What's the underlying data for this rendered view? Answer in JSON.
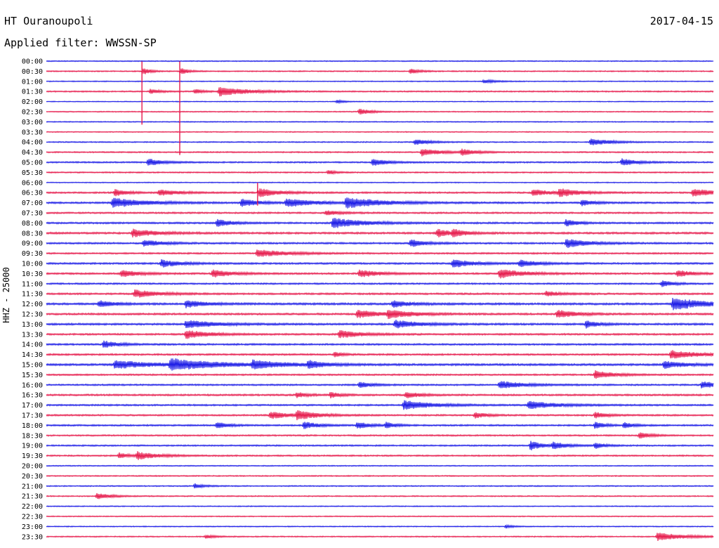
{
  "header": {
    "station": "HT Ouranoupoli",
    "date": "2017-04-15",
    "filter": "Applied filter: WWSSN-SP"
  },
  "colors": {
    "a": "#1a1ae6",
    "b": "#e6194b"
  },
  "chart_data": {
    "type": "line",
    "title": "HT Ouranoupoli",
    "ylabel": "HHZ - 25000",
    "x_unit": "minutes within each 30-minute trace",
    "xlim": [
      0,
      30
    ],
    "trace_colors": [
      "#1a1ae6",
      "#e6194b"
    ],
    "rows": [
      "00:00",
      "00:30",
      "01:00",
      "01:30",
      "02:00",
      "02:30",
      "03:00",
      "03:30",
      "04:00",
      "04:30",
      "05:00",
      "05:30",
      "06:00",
      "06:30",
      "07:00",
      "07:30",
      "08:00",
      "08:30",
      "09:00",
      "09:30",
      "10:00",
      "10:30",
      "11:00",
      "11:30",
      "12:00",
      "12:30",
      "13:00",
      "13:30",
      "14:00",
      "14:30",
      "15:00",
      "15:30",
      "16:00",
      "16:30",
      "17:00",
      "17:30",
      "18:00",
      "18:30",
      "19:00",
      "19:30",
      "20:00",
      "20:30",
      "21:00",
      "21:30",
      "22:00",
      "22:30",
      "23:00",
      "23:30"
    ],
    "noise": [
      0.35,
      0.4,
      0.35,
      0.45,
      0.3,
      0.35,
      0.35,
      0.35,
      0.4,
      0.45,
      0.5,
      0.45,
      0.35,
      0.55,
      0.6,
      0.55,
      0.6,
      0.65,
      0.6,
      0.55,
      0.6,
      0.6,
      0.55,
      0.6,
      0.7,
      0.65,
      0.65,
      0.6,
      0.6,
      0.6,
      0.7,
      0.55,
      0.55,
      0.6,
      0.55,
      0.55,
      0.55,
      0.5,
      0.5,
      0.5,
      0.35,
      0.4,
      0.4,
      0.4,
      0.35,
      0.35,
      0.35,
      0.4
    ],
    "events": [
      {
        "row": 1,
        "t": 4.3,
        "amp": 6,
        "dur": 0.3
      },
      {
        "row": 1,
        "t": 6.0,
        "amp": 6,
        "dur": 0.3
      },
      {
        "row": 1,
        "t": 16.3,
        "amp": 4,
        "dur": 0.4
      },
      {
        "row": 2,
        "t": 19.6,
        "amp": 3,
        "dur": 0.5
      },
      {
        "row": 3,
        "t": 4.6,
        "amp": 4,
        "dur": 0.4
      },
      {
        "row": 3,
        "t": 6.6,
        "amp": 4,
        "dur": 0.4
      },
      {
        "row": 3,
        "t": 7.7,
        "amp": 7,
        "dur": 1.2
      },
      {
        "row": 4,
        "t": 13.0,
        "amp": 3,
        "dur": 0.3
      },
      {
        "row": 5,
        "t": 14.0,
        "amp": 5,
        "dur": 0.5
      },
      {
        "row": 8,
        "t": 16.5,
        "amp": 5,
        "dur": 0.6
      },
      {
        "row": 8,
        "t": 24.4,
        "amp": 6,
        "dur": 0.8
      },
      {
        "row": 9,
        "t": 16.8,
        "amp": 6,
        "dur": 0.8
      },
      {
        "row": 9,
        "t": 18.6,
        "amp": 5,
        "dur": 0.6
      },
      {
        "row": 10,
        "t": 4.5,
        "amp": 6,
        "dur": 0.6
      },
      {
        "row": 10,
        "t": 14.6,
        "amp": 6,
        "dur": 0.6
      },
      {
        "row": 10,
        "t": 25.8,
        "amp": 6,
        "dur": 0.6
      },
      {
        "row": 11,
        "t": 12.6,
        "amp": 4,
        "dur": 0.3
      },
      {
        "row": 13,
        "t": 3.0,
        "amp": 6,
        "dur": 0.5
      },
      {
        "row": 13,
        "t": 5.0,
        "amp": 5,
        "dur": 0.8
      },
      {
        "row": 13,
        "t": 9.5,
        "amp": 7,
        "dur": 0.8
      },
      {
        "row": 13,
        "t": 21.8,
        "amp": 5,
        "dur": 0.8
      },
      {
        "row": 13,
        "t": 23.0,
        "amp": 6,
        "dur": 0.8
      },
      {
        "row": 13,
        "t": 29.0,
        "amp": 6,
        "dur": 1.0
      },
      {
        "row": 14,
        "t": 2.9,
        "amp": 7,
        "dur": 1.4
      },
      {
        "row": 14,
        "t": 8.7,
        "amp": 6,
        "dur": 0.7
      },
      {
        "row": 14,
        "t": 10.7,
        "amp": 6,
        "dur": 1.2
      },
      {
        "row": 14,
        "t": 13.4,
        "amp": 8,
        "dur": 1.5
      },
      {
        "row": 14,
        "t": 24.0,
        "amp": 5,
        "dur": 0.5
      },
      {
        "row": 15,
        "t": 12.5,
        "amp": 4,
        "dur": 0.6
      },
      {
        "row": 16,
        "t": 7.6,
        "amp": 6,
        "dur": 0.6
      },
      {
        "row": 16,
        "t": 12.8,
        "amp": 8,
        "dur": 1.2
      },
      {
        "row": 16,
        "t": 23.3,
        "amp": 6,
        "dur": 0.5
      },
      {
        "row": 17,
        "t": 3.8,
        "amp": 6,
        "dur": 1.0
      },
      {
        "row": 17,
        "t": 17.5,
        "amp": 6,
        "dur": 0.7
      },
      {
        "row": 17,
        "t": 18.2,
        "amp": 5,
        "dur": 0.5
      },
      {
        "row": 18,
        "t": 4.3,
        "amp": 5,
        "dur": 0.8
      },
      {
        "row": 18,
        "t": 16.3,
        "amp": 6,
        "dur": 0.6
      },
      {
        "row": 18,
        "t": 23.3,
        "amp": 7,
        "dur": 0.9
      },
      {
        "row": 19,
        "t": 9.4,
        "amp": 6,
        "dur": 1.2
      },
      {
        "row": 20,
        "t": 5.1,
        "amp": 6,
        "dur": 0.8
      },
      {
        "row": 20,
        "t": 18.2,
        "amp": 7,
        "dur": 0.8
      },
      {
        "row": 20,
        "t": 21.2,
        "amp": 5,
        "dur": 0.8
      },
      {
        "row": 21,
        "t": 3.3,
        "amp": 6,
        "dur": 0.7
      },
      {
        "row": 21,
        "t": 7.4,
        "amp": 6,
        "dur": 0.8
      },
      {
        "row": 21,
        "t": 14.0,
        "amp": 6,
        "dur": 0.8
      },
      {
        "row": 21,
        "t": 20.3,
        "amp": 7,
        "dur": 1.0
      },
      {
        "row": 21,
        "t": 28.3,
        "amp": 6,
        "dur": 0.6
      },
      {
        "row": 22,
        "t": 27.6,
        "amp": 5,
        "dur": 0.5
      },
      {
        "row": 23,
        "t": 3.9,
        "amp": 6,
        "dur": 1.0
      },
      {
        "row": 23,
        "t": 22.4,
        "amp": 4,
        "dur": 0.6
      },
      {
        "row": 24,
        "t": 2.3,
        "amp": 6,
        "dur": 0.6
      },
      {
        "row": 24,
        "t": 6.2,
        "amp": 6,
        "dur": 0.8
      },
      {
        "row": 24,
        "t": 15.5,
        "amp": 5,
        "dur": 0.8
      },
      {
        "row": 24,
        "t": 28.1,
        "amp": 9,
        "dur": 1.4
      },
      {
        "row": 25,
        "t": 13.9,
        "amp": 6,
        "dur": 1.0
      },
      {
        "row": 25,
        "t": 15.3,
        "amp": 6,
        "dur": 1.0
      },
      {
        "row": 25,
        "t": 22.9,
        "amp": 6,
        "dur": 0.8
      },
      {
        "row": 26,
        "t": 6.2,
        "amp": 6,
        "dur": 1.2
      },
      {
        "row": 26,
        "t": 15.6,
        "amp": 6,
        "dur": 1.0
      },
      {
        "row": 26,
        "t": 24.2,
        "amp": 6,
        "dur": 0.5
      },
      {
        "row": 27,
        "t": 6.2,
        "amp": 7,
        "dur": 0.9
      },
      {
        "row": 27,
        "t": 13.1,
        "amp": 6,
        "dur": 0.9
      },
      {
        "row": 28,
        "t": 2.5,
        "amp": 6,
        "dur": 0.6
      },
      {
        "row": 29,
        "t": 12.9,
        "amp": 5,
        "dur": 0.3
      },
      {
        "row": 29,
        "t": 28.0,
        "amp": 6,
        "dur": 1.2
      },
      {
        "row": 30,
        "t": 3.0,
        "amp": 6,
        "dur": 1.6
      },
      {
        "row": 30,
        "t": 5.5,
        "amp": 8,
        "dur": 2.0
      },
      {
        "row": 30,
        "t": 9.2,
        "amp": 6,
        "dur": 1.2
      },
      {
        "row": 30,
        "t": 11.7,
        "amp": 6,
        "dur": 0.6
      },
      {
        "row": 30,
        "t": 27.7,
        "amp": 6,
        "dur": 0.8
      },
      {
        "row": 31,
        "t": 24.6,
        "amp": 6,
        "dur": 0.8
      },
      {
        "row": 32,
        "t": 14.0,
        "amp": 5,
        "dur": 0.5
      },
      {
        "row": 32,
        "t": 20.3,
        "amp": 6,
        "dur": 1.0
      },
      {
        "row": 32,
        "t": 29.4,
        "amp": 6,
        "dur": 0.6
      },
      {
        "row": 33,
        "t": 11.2,
        "amp": 5,
        "dur": 0.4
      },
      {
        "row": 33,
        "t": 12.7,
        "amp": 5,
        "dur": 0.4
      },
      {
        "row": 33,
        "t": 16.1,
        "amp": 5,
        "dur": 0.6
      },
      {
        "row": 34,
        "t": 16.0,
        "amp": 7,
        "dur": 1.2
      },
      {
        "row": 34,
        "t": 21.6,
        "amp": 6,
        "dur": 1.2
      },
      {
        "row": 35,
        "t": 10.0,
        "amp": 6,
        "dur": 0.8
      },
      {
        "row": 35,
        "t": 11.2,
        "amp": 7,
        "dur": 0.8
      },
      {
        "row": 35,
        "t": 19.2,
        "amp": 5,
        "dur": 0.5
      },
      {
        "row": 35,
        "t": 24.6,
        "amp": 5,
        "dur": 0.5
      },
      {
        "row": 36,
        "t": 7.6,
        "amp": 5,
        "dur": 0.5
      },
      {
        "row": 36,
        "t": 11.5,
        "amp": 6,
        "dur": 0.6
      },
      {
        "row": 36,
        "t": 13.9,
        "amp": 6,
        "dur": 0.5
      },
      {
        "row": 36,
        "t": 15.2,
        "amp": 5,
        "dur": 0.4
      },
      {
        "row": 36,
        "t": 24.6,
        "amp": 6,
        "dur": 0.4
      },
      {
        "row": 36,
        "t": 25.9,
        "amp": 5,
        "dur": 0.4
      },
      {
        "row": 37,
        "t": 26.6,
        "amp": 5,
        "dur": 0.5
      },
      {
        "row": 38,
        "t": 21.7,
        "amp": 8,
        "dur": 0.5
      },
      {
        "row": 38,
        "t": 22.7,
        "amp": 5,
        "dur": 0.6
      },
      {
        "row": 38,
        "t": 24.6,
        "amp": 5,
        "dur": 0.4
      },
      {
        "row": 39,
        "t": 3.2,
        "amp": 5,
        "dur": 0.4
      },
      {
        "row": 39,
        "t": 4.0,
        "amp": 6,
        "dur": 0.9
      },
      {
        "row": 42,
        "t": 6.6,
        "amp": 4,
        "dur": 0.4
      },
      {
        "row": 43,
        "t": 2.2,
        "amp": 5,
        "dur": 0.6
      },
      {
        "row": 46,
        "t": 20.6,
        "amp": 3,
        "dur": 0.3
      },
      {
        "row": 47,
        "t": 7.1,
        "amp": 3,
        "dur": 0.4
      },
      {
        "row": 47,
        "t": 27.4,
        "amp": 6,
        "dur": 1.2
      }
    ],
    "spikes": [
      {
        "from_row": 1,
        "to_row": 6,
        "t": 4.3
      },
      {
        "from_row": 1,
        "to_row": 9,
        "t": 6.0
      },
      {
        "from_row": 13,
        "to_row": 14,
        "t": 9.5
      }
    ]
  }
}
